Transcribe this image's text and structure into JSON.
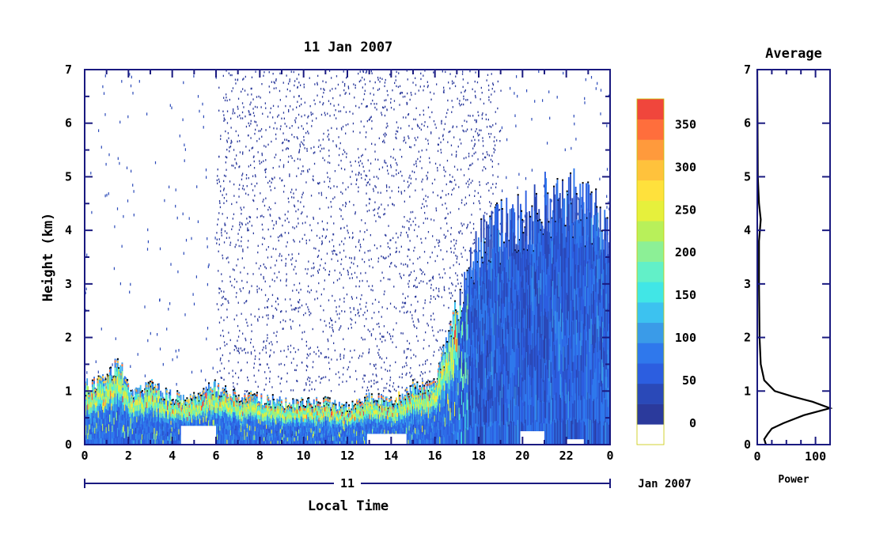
{
  "chart_data": [
    {
      "type": "heatmap",
      "title": "11 Jan 2007",
      "xlabel": "Local Time",
      "ylabel": "Height (km)",
      "x_ticks": [
        "0",
        "2",
        "4",
        "6",
        "8",
        "10",
        "12",
        "14",
        "16",
        "18",
        "20",
        "22",
        "0"
      ],
      "x_range": [
        0,
        24
      ],
      "y_ticks": [
        "0",
        "1",
        "2",
        "3",
        "4",
        "5",
        "6",
        "7"
      ],
      "ylim": [
        0,
        7
      ],
      "date_axis": {
        "day_label": "11",
        "month_label": "Jan 2007"
      },
      "colorbar": {
        "ticks": [
          "0",
          "50",
          "100",
          "150",
          "200",
          "250",
          "300",
          "350"
        ],
        "range": [
          -25,
          380
        ],
        "colors": [
          "#ffffff",
          "#2b3a9c",
          "#2a49b8",
          "#2c5ee0",
          "#2f78ec",
          "#3a9be8",
          "#3cc2f0",
          "#41e6e6",
          "#62f0c8",
          "#8cf096",
          "#b8f05a",
          "#e6f03c",
          "#ffe13c",
          "#ffc23c",
          "#ff9a3c",
          "#ff6e3c",
          "#f0463c"
        ]
      },
      "cloud_top_profile_km": [
        {
          "t": 0.0,
          "top": 1.1
        },
        {
          "t": 1.0,
          "top": 1.2
        },
        {
          "t": 1.5,
          "top": 1.6
        },
        {
          "t": 2.0,
          "top": 1.0
        },
        {
          "t": 3.0,
          "top": 1.1
        },
        {
          "t": 4.0,
          "top": 0.9
        },
        {
          "t": 5.0,
          "top": 0.9
        },
        {
          "t": 6.0,
          "top": 1.1
        },
        {
          "t": 7.0,
          "top": 0.9
        },
        {
          "t": 8.0,
          "top": 0.9
        },
        {
          "t": 9.0,
          "top": 0.8
        },
        {
          "t": 10.0,
          "top": 0.8
        },
        {
          "t": 11.0,
          "top": 0.8
        },
        {
          "t": 12.0,
          "top": 0.7
        },
        {
          "t": 13.0,
          "top": 0.9
        },
        {
          "t": 14.0,
          "top": 0.8
        },
        {
          "t": 15.0,
          "top": 1.1
        },
        {
          "t": 16.0,
          "top": 1.2
        },
        {
          "t": 17.0,
          "top": 2.6
        },
        {
          "t": 18.0,
          "top": 3.8
        },
        {
          "t": 19.0,
          "top": 4.1
        },
        {
          "t": 20.0,
          "top": 4.2
        },
        {
          "t": 21.0,
          "top": 4.6
        },
        {
          "t": 22.0,
          "top": 4.7
        },
        {
          "t": 23.0,
          "top": 4.4
        },
        {
          "t": 24.0,
          "top": 4.0
        }
      ],
      "noise_region_hours": [
        6.0,
        19.0
      ]
    },
    {
      "type": "line",
      "title": "Average",
      "xlabel": "Power",
      "ylabel": "",
      "x_ticks": [
        "0",
        "100"
      ],
      "xlim": [
        0,
        125
      ],
      "y_ticks": [
        "0",
        "1",
        "2",
        "3",
        "4",
        "5",
        "6",
        "7"
      ],
      "ylim": [
        0,
        7
      ],
      "series": [
        {
          "points": [
            {
              "power": 15,
              "height": 0.0
            },
            {
              "power": 12,
              "height": 0.1
            },
            {
              "power": 18,
              "height": 0.2
            },
            {
              "power": 25,
              "height": 0.3
            },
            {
              "power": 45,
              "height": 0.4
            },
            {
              "power": 80,
              "height": 0.55
            },
            {
              "power": 125,
              "height": 0.68
            },
            {
              "power": 95,
              "height": 0.8
            },
            {
              "power": 60,
              "height": 0.9
            },
            {
              "power": 30,
              "height": 1.0
            },
            {
              "power": 12,
              "height": 1.2
            },
            {
              "power": 6,
              "height": 1.5
            },
            {
              "power": 4,
              "height": 2.0
            },
            {
              "power": 3,
              "height": 3.0
            },
            {
              "power": 3,
              "height": 3.8
            },
            {
              "power": 6,
              "height": 4.2
            },
            {
              "power": 3,
              "height": 4.5
            },
            {
              "power": 1,
              "height": 5.0
            },
            {
              "power": 0,
              "height": 7.0
            }
          ]
        }
      ]
    }
  ]
}
